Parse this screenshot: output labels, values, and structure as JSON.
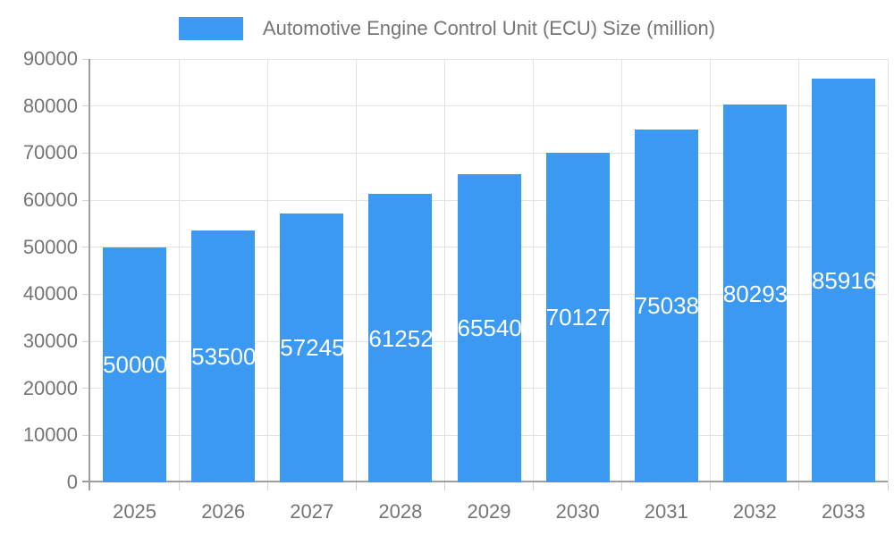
{
  "legend": {
    "label": "Automotive Engine Control Unit (ECU) Size (million)"
  },
  "chart_data": {
    "type": "bar",
    "title": "Automotive Engine Control Unit (ECU) Size (million)",
    "categories": [
      "2025",
      "2026",
      "2027",
      "2028",
      "2029",
      "2030",
      "2031",
      "2032",
      "2033"
    ],
    "values": [
      50000,
      53500,
      57245,
      61252,
      65540,
      70127,
      75038,
      80293,
      85916
    ],
    "value_labels": [
      "50000",
      "53500",
      "57245",
      "61252",
      "65540",
      "70127",
      "75038",
      "80293",
      "85916"
    ],
    "xlabel": "",
    "ylabel": "",
    "ylim": [
      0,
      90000
    ],
    "yticks": [
      0,
      10000,
      20000,
      30000,
      40000,
      50000,
      60000,
      70000,
      80000,
      90000
    ],
    "ytick_labels": [
      "0",
      "10000",
      "20000",
      "30000",
      "40000",
      "50000",
      "60000",
      "70000",
      "80000",
      "90000"
    ],
    "grid": true,
    "legend_position": "top-center",
    "bar_label_position": "inside-center"
  },
  "colors": {
    "bar": "#3b99f1",
    "grid": "#e3e3e3",
    "axis": "#9e9e9e",
    "tick": "#d2d2d2",
    "axis_text": "#757575",
    "bar_label_text": "#ffffff",
    "background": "#ffffff"
  }
}
